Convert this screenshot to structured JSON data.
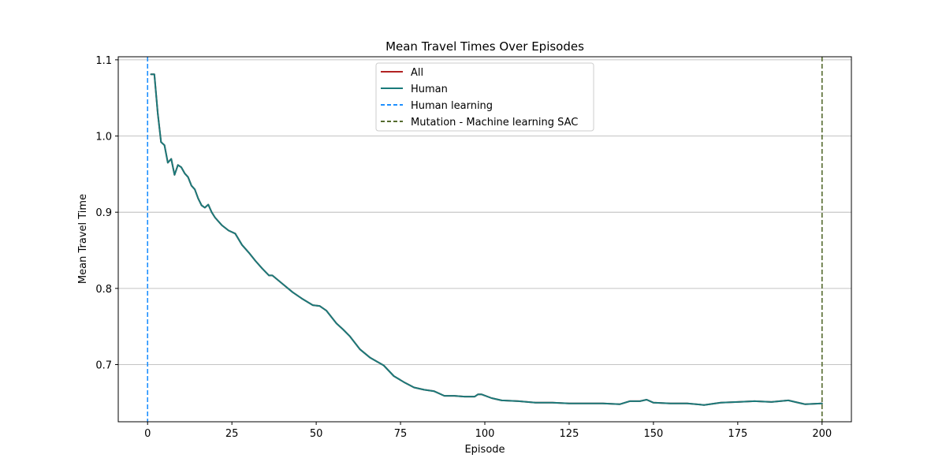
{
  "chart_data": {
    "type": "line",
    "title": "Mean Travel Times Over Episodes",
    "xlabel": "Episode",
    "ylabel": "Mean Travel Time",
    "xlim": [
      -8.7,
      208.7
    ],
    "ylim": [
      0.625,
      1.104
    ],
    "xticks": [
      0,
      25,
      50,
      75,
      100,
      125,
      150,
      175,
      200
    ],
    "yticks": [
      0.7,
      0.8,
      0.9,
      1.0,
      1.1
    ],
    "ytick_labels": [
      "0.7",
      "0.8",
      "0.9",
      "1.0",
      "1.1"
    ],
    "grid": "horizontal",
    "legend_position": "upper center",
    "legend": [
      {
        "label": "All",
        "color": "#b22222",
        "style": "solid"
      },
      {
        "label": "Human",
        "color": "#1a7a7a",
        "style": "solid"
      },
      {
        "label": "Human learning",
        "color": "#1e90ff",
        "style": "dashed"
      },
      {
        "label": "Mutation - Machine learning SAC",
        "color": "#556b2f",
        "style": "dashed"
      }
    ],
    "vlines": [
      {
        "name": "Human learning",
        "x": 0,
        "color": "#1e90ff"
      },
      {
        "name": "Mutation - Machine learning SAC",
        "x": 200,
        "color": "#556b2f"
      }
    ],
    "series": [
      {
        "name": "All",
        "color": "#b22222",
        "x": [
          1,
          2,
          3,
          4,
          5,
          6,
          7,
          8,
          9,
          10,
          11,
          12,
          13,
          14,
          15,
          16,
          17,
          18,
          19,
          20,
          22,
          24,
          26,
          28,
          30,
          32,
          34,
          36,
          37,
          40,
          43,
          46,
          49,
          51,
          53,
          56,
          58,
          60,
          63,
          66,
          68,
          70,
          73,
          76,
          79,
          82,
          85,
          88,
          91,
          94,
          97,
          98,
          99,
          102,
          105,
          110,
          115,
          120,
          125,
          130,
          135,
          140,
          143,
          146,
          148,
          150,
          155,
          160,
          165,
          170,
          175,
          180,
          185,
          190,
          195,
          200
        ],
        "values": [
          1.081,
          1.081,
          1.03,
          0.992,
          0.988,
          0.965,
          0.97,
          0.949,
          0.962,
          0.959,
          0.951,
          0.946,
          0.935,
          0.93,
          0.918,
          0.909,
          0.906,
          0.91,
          0.9,
          0.893,
          0.883,
          0.876,
          0.872,
          0.857,
          0.847,
          0.836,
          0.826,
          0.817,
          0.817,
          0.806,
          0.795,
          0.786,
          0.778,
          0.777,
          0.771,
          0.754,
          0.746,
          0.737,
          0.72,
          0.709,
          0.704,
          0.699,
          0.685,
          0.677,
          0.67,
          0.667,
          0.665,
          0.659,
          0.659,
          0.658,
          0.658,
          0.661,
          0.661,
          0.656,
          0.653,
          0.652,
          0.65,
          0.65,
          0.649,
          0.649,
          0.649,
          0.648,
          0.652,
          0.652,
          0.654,
          0.65,
          0.649,
          0.649,
          0.647,
          0.65,
          0.651,
          0.652,
          0.651,
          0.653,
          0.648,
          0.649
        ]
      },
      {
        "name": "Human",
        "color": "#1a7a7a",
        "x": [
          1,
          2,
          3,
          4,
          5,
          6,
          7,
          8,
          9,
          10,
          11,
          12,
          13,
          14,
          15,
          16,
          17,
          18,
          19,
          20,
          22,
          24,
          26,
          28,
          30,
          32,
          34,
          36,
          37,
          40,
          43,
          46,
          49,
          51,
          53,
          56,
          58,
          60,
          63,
          66,
          68,
          70,
          73,
          76,
          79,
          82,
          85,
          88,
          91,
          94,
          97,
          98,
          99,
          102,
          105,
          110,
          115,
          120,
          125,
          130,
          135,
          140,
          143,
          146,
          148,
          150,
          155,
          160,
          165,
          170,
          175,
          180,
          185,
          190,
          195,
          200
        ],
        "values": [
          1.081,
          1.081,
          1.03,
          0.992,
          0.988,
          0.965,
          0.97,
          0.949,
          0.962,
          0.959,
          0.951,
          0.946,
          0.935,
          0.93,
          0.918,
          0.909,
          0.906,
          0.91,
          0.9,
          0.893,
          0.883,
          0.876,
          0.872,
          0.857,
          0.847,
          0.836,
          0.826,
          0.817,
          0.817,
          0.806,
          0.795,
          0.786,
          0.778,
          0.777,
          0.771,
          0.754,
          0.746,
          0.737,
          0.72,
          0.709,
          0.704,
          0.699,
          0.685,
          0.677,
          0.67,
          0.667,
          0.665,
          0.659,
          0.659,
          0.658,
          0.658,
          0.661,
          0.661,
          0.656,
          0.653,
          0.652,
          0.65,
          0.65,
          0.649,
          0.649,
          0.649,
          0.648,
          0.652,
          0.652,
          0.654,
          0.65,
          0.649,
          0.649,
          0.647,
          0.65,
          0.651,
          0.652,
          0.651,
          0.653,
          0.648,
          0.649
        ]
      }
    ]
  }
}
